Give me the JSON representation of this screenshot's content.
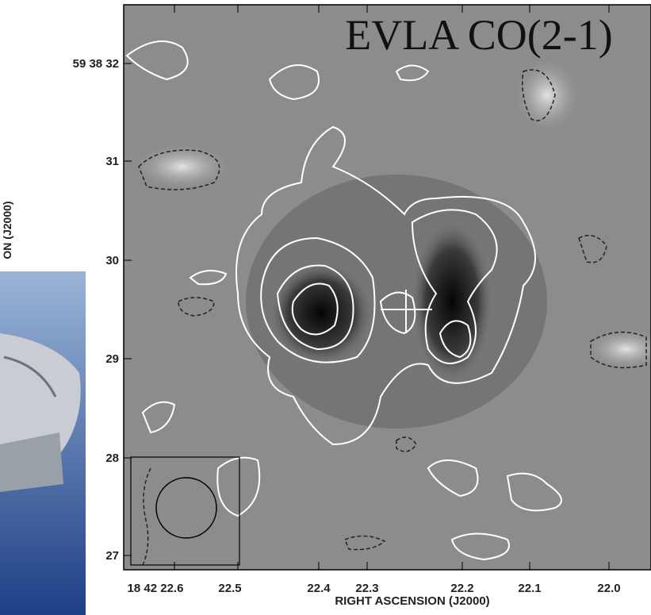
{
  "figure": {
    "title": "EVLA CO(2-1)",
    "y_axis_label": "ON (J2000)",
    "x_axis_label": "RIGHT ASCENSION (J2000)",
    "y_ticks": [
      "59 38 32",
      "31",
      "30",
      "29",
      "28",
      "27"
    ],
    "x_ticks": [
      "18 42 22.6",
      "22.5",
      "22.4",
      "22.3",
      "22.2",
      "22.1",
      "22.0"
    ]
  }
}
